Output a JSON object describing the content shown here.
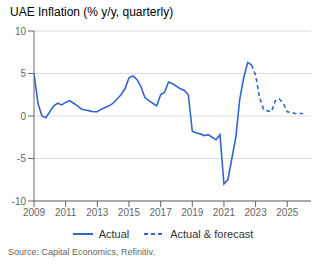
{
  "chart_data": {
    "type": "line",
    "title": "UAE Inflation (% y/y, quarterly)",
    "annotations": [
      "Source: Capital Economics, Refinitiv."
    ],
    "xlim": [
      2009.0,
      2026.5
    ],
    "xticks": [
      2009,
      2011,
      2013,
      2015,
      2017,
      2019,
      2021,
      2023,
      2025
    ],
    "ylim": [
      -10,
      10
    ],
    "yticks": [
      -10,
      -5,
      0,
      5,
      10
    ],
    "grid": "y",
    "legend": "bottom",
    "series": [
      {
        "name": "Actual",
        "color": "#3366CC",
        "line_style": "solid",
        "x": [
          2009.0,
          2009.25,
          2009.5,
          2009.75,
          2010.0,
          2010.25,
          2010.5,
          2010.75,
          2011.0,
          2011.25,
          2011.5,
          2011.75,
          2012.0,
          2012.25,
          2012.5,
          2012.75,
          2013.0,
          2013.25,
          2013.5,
          2013.75,
          2014.0,
          2014.25,
          2014.5,
          2014.75,
          2015.0,
          2015.25,
          2015.5,
          2015.75,
          2016.0,
          2016.25,
          2016.5,
          2016.75,
          2017.0,
          2017.25,
          2017.5,
          2017.75,
          2018.0,
          2018.25,
          2018.5,
          2018.75,
          2019.0,
          2019.25,
          2019.5,
          2019.75,
          2020.0,
          2020.25,
          2020.5,
          2020.75,
          2021.0,
          2021.25,
          2021.5,
          2021.75,
          2022.0,
          2022.25,
          2022.5,
          2022.75
        ],
        "values": [
          5.0,
          1.5,
          0.0,
          -0.2,
          0.5,
          1.2,
          1.5,
          1.3,
          1.6,
          1.8,
          1.5,
          1.2,
          0.8,
          0.7,
          0.6,
          0.5,
          0.5,
          0.8,
          1.0,
          1.2,
          1.5,
          2.0,
          2.5,
          3.2,
          4.5,
          4.7,
          4.3,
          3.5,
          2.2,
          1.8,
          1.5,
          1.2,
          2.5,
          2.8,
          4.0,
          3.8,
          3.5,
          3.2,
          3.0,
          2.5,
          -1.8,
          -2.0,
          -2.1,
          -2.3,
          -2.2,
          -2.5,
          -2.8,
          -2.2,
          -8.0,
          -7.5,
          -5.0,
          -2.5,
          2.0,
          4.5,
          6.3,
          6.0
        ]
      },
      {
        "name": "Actual & forecast",
        "color": "#3366CC",
        "line_style": "dashed",
        "x": [
          2022.75,
          2023.0,
          2023.25,
          2023.5,
          2023.75,
          2024.0,
          2024.25,
          2024.5,
          2024.75,
          2025.0,
          2025.25,
          2025.5,
          2025.75,
          2026.0
        ],
        "values": [
          6.0,
          4.8,
          2.2,
          0.8,
          0.6,
          0.5,
          1.8,
          2.0,
          1.5,
          0.5,
          0.4,
          0.3,
          0.3,
          0.3
        ]
      }
    ]
  }
}
